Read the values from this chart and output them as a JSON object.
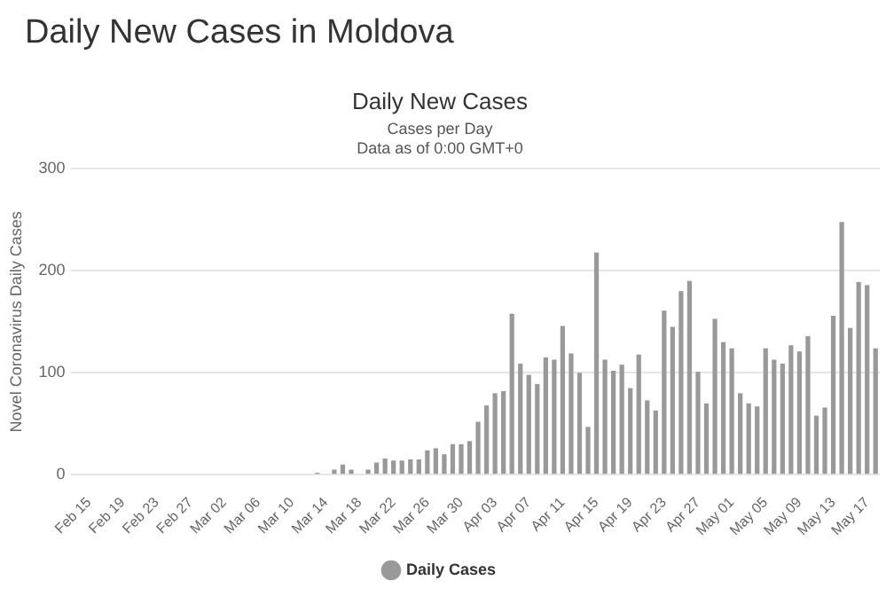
{
  "chart_data": {
    "type": "bar",
    "title": "Daily New Cases in Moldova",
    "subtitle": "Daily New Cases",
    "annotations": [
      "Cases per Day",
      "Data as of 0:00 GMT+0"
    ],
    "ylabel": "Novel Coronavirus Daily Cases",
    "categories": [
      "Feb 15",
      null,
      null,
      null,
      "Feb 19",
      null,
      null,
      null,
      "Feb 23",
      null,
      null,
      null,
      "Feb 27",
      null,
      null,
      null,
      "Mar 02",
      null,
      null,
      null,
      "Mar 06",
      null,
      null,
      null,
      "Mar 10",
      null,
      null,
      null,
      "Mar 14",
      null,
      null,
      null,
      "Mar 18",
      null,
      null,
      null,
      "Mar 22",
      null,
      null,
      null,
      "Mar 26",
      null,
      null,
      null,
      "Mar 30",
      null,
      null,
      null,
      "Apr 03",
      null,
      null,
      null,
      "Apr 07",
      null,
      null,
      null,
      "Apr 11",
      null,
      null,
      null,
      "Apr 15",
      null,
      null,
      null,
      "Apr 19",
      null,
      null,
      null,
      "Apr 23",
      null,
      null,
      null,
      "Apr 27",
      null,
      null,
      null,
      "May 01",
      null,
      null,
      null,
      "May 05",
      null,
      null,
      null,
      "May 09",
      null,
      null,
      null,
      "May 13",
      null,
      null,
      null,
      "May 17",
      null
    ],
    "series": [
      {
        "name": "Daily Cases",
        "color": "#999999",
        "values": [
          0,
          0,
          0,
          0,
          0,
          0,
          0,
          0,
          0,
          0,
          0,
          0,
          0,
          0,
          0,
          0,
          0,
          0,
          0,
          0,
          0,
          0,
          0,
          0,
          0,
          0,
          0,
          2,
          0,
          5,
          10,
          5,
          0,
          5,
          12,
          16,
          14,
          14,
          15,
          15,
          24,
          26,
          20,
          30,
          30,
          33,
          52,
          68,
          80,
          82,
          158,
          109,
          98,
          89,
          115,
          113,
          146,
          119,
          100,
          47,
          218,
          113,
          102,
          108,
          85,
          118,
          73,
          63,
          161,
          145,
          180,
          190,
          101,
          70,
          153,
          130,
          124,
          80,
          70,
          67,
          124,
          113,
          109,
          127,
          121,
          136,
          58,
          66,
          156,
          248,
          144,
          189,
          186,
          124
        ]
      }
    ],
    "ylim": [
      0,
      300
    ],
    "yticks": [
      0,
      100,
      200,
      300
    ],
    "grid": "y",
    "legend": "bottom"
  }
}
